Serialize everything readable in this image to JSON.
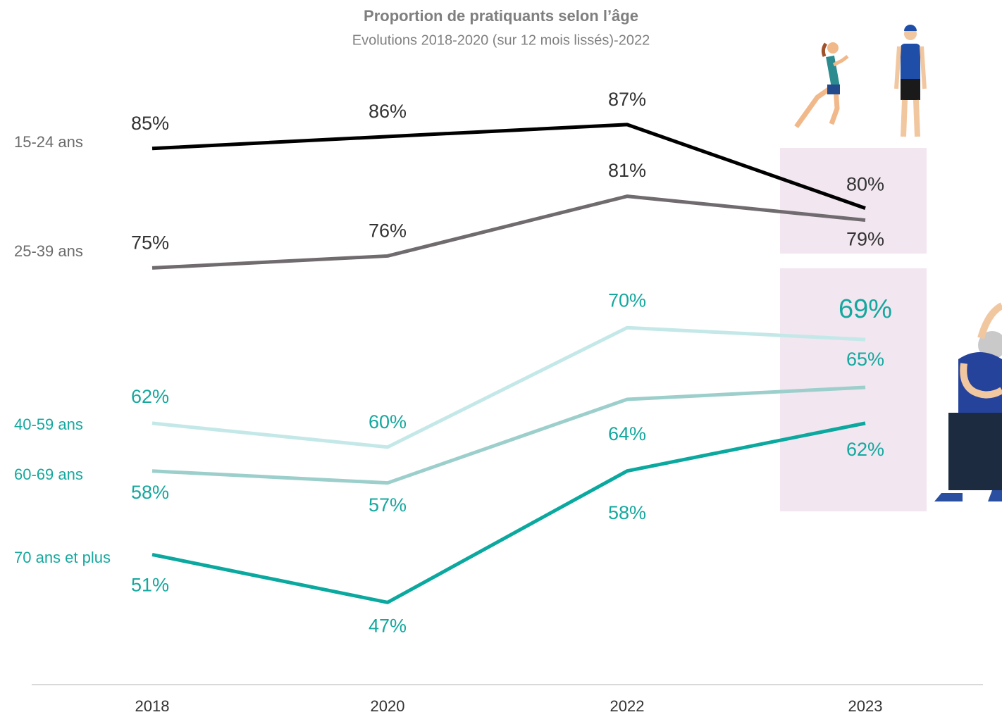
{
  "chart_data": {
    "type": "line",
    "title": "Proportion de pratiquants selon l’âge",
    "subtitle": "Evolutions 2018-2020 (sur 12 mois lissés)-2022",
    "categories": [
      "2018",
      "2020",
      "2022",
      "2023"
    ],
    "series": [
      {
        "name": "15-24 ans",
        "color": "#000000",
        "values": [
          85,
          86,
          87,
          80
        ],
        "value_labels": [
          "85%",
          "86%",
          "87%",
          "80%"
        ]
      },
      {
        "name": "25-39 ans",
        "color": "#706b6e",
        "values": [
          75,
          76,
          81,
          79
        ],
        "value_labels": [
          "75%",
          "76%",
          "81%",
          "79%"
        ]
      },
      {
        "name": "40-59 ans",
        "color": "#c4e8e8",
        "values": [
          62,
          60,
          70,
          69
        ],
        "value_labels": [
          "62%",
          "60%",
          "70%",
          "69%"
        ]
      },
      {
        "name": "60-69 ans",
        "color": "#9ccfcb",
        "values": [
          58,
          57,
          64,
          65
        ],
        "value_labels": [
          "58%",
          "57%",
          "64%",
          "65%"
        ]
      },
      {
        "name": "70 ans et plus",
        "color": "#0aa89e",
        "values": [
          51,
          47,
          58,
          62
        ],
        "value_labels": [
          "51%",
          "47%",
          "58%",
          "62%"
        ]
      }
    ],
    "ylim": [
      40,
      90
    ],
    "grid": false
  }
}
